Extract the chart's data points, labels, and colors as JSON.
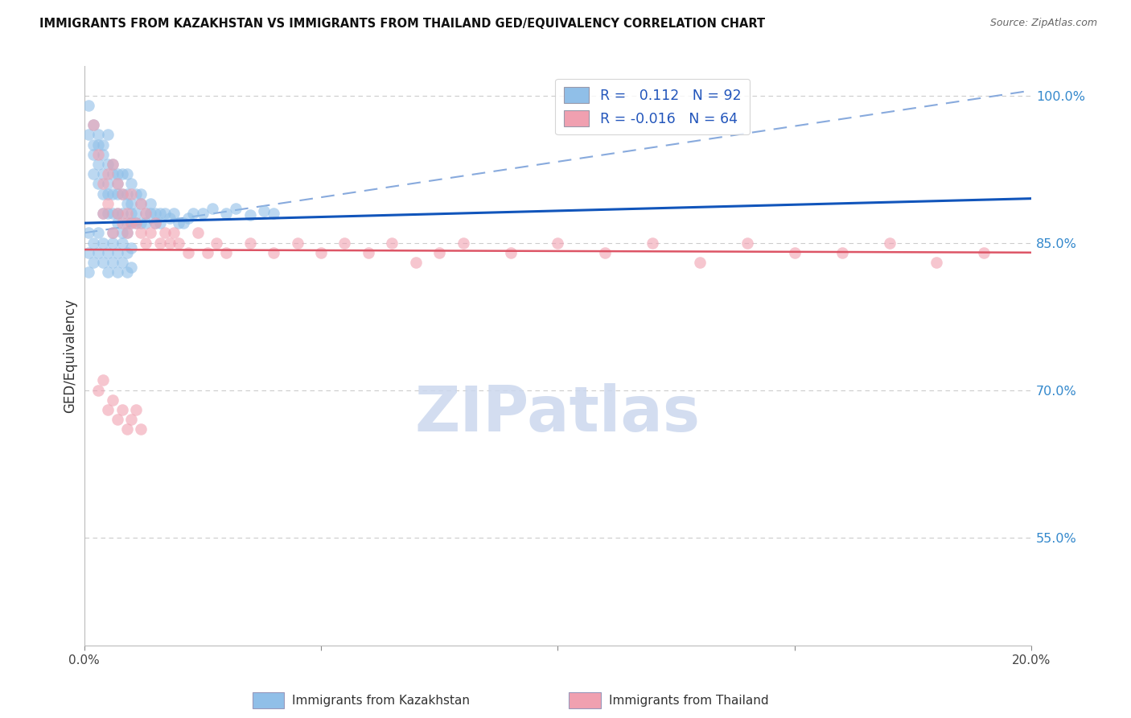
{
  "title": "IMMIGRANTS FROM KAZAKHSTAN VS IMMIGRANTS FROM THAILAND GED/EQUIVALENCY CORRELATION CHART",
  "source": "Source: ZipAtlas.com",
  "ylabel": "GED/Equivalency",
  "xmin": 0.0,
  "xmax": 0.2,
  "ymin": 0.44,
  "ymax": 1.03,
  "ytick_vals": [
    0.55,
    0.7,
    0.85,
    1.0
  ],
  "ytick_labels": [
    "55.0%",
    "70.0%",
    "85.0%",
    "100.0%"
  ],
  "legend_r1": "0.112",
  "legend_n1": "92",
  "legend_r2": "-0.016",
  "legend_n2": "64",
  "kaz_color": "#90bfe8",
  "thai_color": "#f0a0b0",
  "kaz_edge_color": "#6699cc",
  "thai_edge_color": "#e06878",
  "kaz_trend_color": "#1155bb",
  "thai_trend_color": "#dd5566",
  "dashed_color": "#88aadd",
  "watermark_color": "#ccd8ee",
  "kaz_trend_x0": 0.0,
  "kaz_trend_x1": 0.2,
  "kaz_trend_y0": 0.87,
  "kaz_trend_y1": 0.895,
  "thai_trend_y0": 0.843,
  "thai_trend_y1": 0.84,
  "dash_trend_y0": 0.86,
  "dash_trend_y1": 1.005,
  "scatter_kaz_x": [
    0.001,
    0.001,
    0.002,
    0.002,
    0.002,
    0.002,
    0.003,
    0.003,
    0.003,
    0.003,
    0.004,
    0.004,
    0.004,
    0.004,
    0.004,
    0.005,
    0.005,
    0.005,
    0.005,
    0.005,
    0.006,
    0.006,
    0.006,
    0.006,
    0.006,
    0.007,
    0.007,
    0.007,
    0.007,
    0.007,
    0.008,
    0.008,
    0.008,
    0.008,
    0.009,
    0.009,
    0.009,
    0.009,
    0.009,
    0.01,
    0.01,
    0.01,
    0.01,
    0.011,
    0.011,
    0.011,
    0.012,
    0.012,
    0.012,
    0.013,
    0.013,
    0.014,
    0.014,
    0.015,
    0.015,
    0.016,
    0.016,
    0.017,
    0.018,
    0.019,
    0.02,
    0.021,
    0.022,
    0.023,
    0.025,
    0.027,
    0.03,
    0.032,
    0.035,
    0.038,
    0.04,
    0.001,
    0.001,
    0.001,
    0.002,
    0.002,
    0.003,
    0.003,
    0.004,
    0.004,
    0.005,
    0.005,
    0.006,
    0.006,
    0.007,
    0.007,
    0.008,
    0.008,
    0.009,
    0.009,
    0.01,
    0.01
  ],
  "scatter_kaz_y": [
    0.96,
    0.99,
    0.95,
    0.97,
    0.92,
    0.94,
    0.96,
    0.93,
    0.95,
    0.91,
    0.95,
    0.92,
    0.94,
    0.9,
    0.88,
    0.96,
    0.93,
    0.9,
    0.88,
    0.91,
    0.93,
    0.9,
    0.92,
    0.88,
    0.86,
    0.92,
    0.9,
    0.88,
    0.91,
    0.87,
    0.9,
    0.88,
    0.86,
    0.92,
    0.89,
    0.87,
    0.9,
    0.92,
    0.86,
    0.89,
    0.87,
    0.91,
    0.88,
    0.88,
    0.9,
    0.87,
    0.89,
    0.87,
    0.9,
    0.88,
    0.87,
    0.88,
    0.89,
    0.87,
    0.88,
    0.88,
    0.87,
    0.88,
    0.875,
    0.88,
    0.87,
    0.87,
    0.875,
    0.88,
    0.88,
    0.885,
    0.88,
    0.885,
    0.878,
    0.882,
    0.88,
    0.86,
    0.84,
    0.82,
    0.85,
    0.83,
    0.86,
    0.84,
    0.85,
    0.83,
    0.84,
    0.82,
    0.85,
    0.83,
    0.84,
    0.82,
    0.85,
    0.83,
    0.84,
    0.82,
    0.845,
    0.825
  ],
  "scatter_thai_x": [
    0.002,
    0.003,
    0.004,
    0.004,
    0.005,
    0.005,
    0.006,
    0.006,
    0.007,
    0.007,
    0.008,
    0.008,
    0.009,
    0.009,
    0.01,
    0.01,
    0.011,
    0.012,
    0.012,
    0.013,
    0.013,
    0.014,
    0.015,
    0.016,
    0.017,
    0.018,
    0.019,
    0.02,
    0.022,
    0.024,
    0.026,
    0.028,
    0.03,
    0.035,
    0.04,
    0.045,
    0.05,
    0.055,
    0.06,
    0.065,
    0.07,
    0.075,
    0.08,
    0.09,
    0.1,
    0.11,
    0.12,
    0.13,
    0.14,
    0.15,
    0.16,
    0.17,
    0.18,
    0.19,
    0.003,
    0.004,
    0.005,
    0.006,
    0.007,
    0.008,
    0.009,
    0.01,
    0.011,
    0.012
  ],
  "scatter_thai_y": [
    0.97,
    0.94,
    0.91,
    0.88,
    0.92,
    0.89,
    0.93,
    0.86,
    0.88,
    0.91,
    0.87,
    0.9,
    0.88,
    0.86,
    0.87,
    0.9,
    0.87,
    0.89,
    0.86,
    0.88,
    0.85,
    0.86,
    0.87,
    0.85,
    0.86,
    0.85,
    0.86,
    0.85,
    0.84,
    0.86,
    0.84,
    0.85,
    0.84,
    0.85,
    0.84,
    0.85,
    0.84,
    0.85,
    0.84,
    0.85,
    0.83,
    0.84,
    0.85,
    0.84,
    0.85,
    0.84,
    0.85,
    0.83,
    0.85,
    0.84,
    0.84,
    0.85,
    0.83,
    0.84,
    0.7,
    0.71,
    0.68,
    0.69,
    0.67,
    0.68,
    0.66,
    0.67,
    0.68,
    0.66
  ]
}
